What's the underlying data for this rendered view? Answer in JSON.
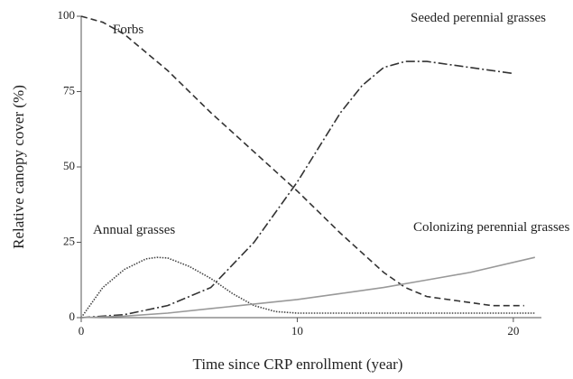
{
  "chart_data": {
    "type": "line",
    "x_label": "Time since CRP enrollment (year)",
    "y_label": "Relative canopy cover (%)",
    "xlim": [
      0,
      21.3
    ],
    "ylim": [
      0,
      100
    ],
    "xticks": [
      0,
      10,
      20
    ],
    "yticks": [
      0,
      25,
      50,
      75,
      100
    ],
    "series": [
      {
        "name": "Forbs",
        "color": "#333333",
        "dash": "7,4",
        "x": [
          0,
          1,
          2,
          4,
          6,
          8,
          10,
          12,
          14,
          15,
          16,
          18,
          19,
          20.5
        ],
        "values": [
          100,
          98,
          94,
          82,
          68,
          55,
          42,
          28,
          15,
          10,
          7,
          5,
          4,
          4
        ]
      },
      {
        "name": "Seeded perennial grasses",
        "color": "#333333",
        "dash": "10,3,2,3",
        "x": [
          0,
          2,
          4,
          6,
          8,
          10,
          12,
          13,
          14,
          15,
          16,
          18,
          20
        ],
        "values": [
          0,
          1,
          4,
          10,
          25,
          45,
          68,
          77,
          83,
          85,
          85,
          83,
          81
        ]
      },
      {
        "name": "Annual grasses",
        "color": "#444444",
        "dash": "1.5,1.5",
        "x": [
          0,
          1,
          2,
          3,
          3.5,
          4,
          5,
          6,
          7,
          8,
          9,
          10,
          21
        ],
        "values": [
          0,
          10,
          16,
          19.5,
          20,
          19.8,
          17,
          13,
          8,
          4,
          2,
          1.5,
          1.5
        ]
      },
      {
        "name": "Colonizing perennial grasses",
        "color": "#999999",
        "dash": "",
        "x": [
          0,
          2,
          4,
          6,
          8,
          10,
          12,
          14,
          16,
          18,
          21
        ],
        "values": [
          0,
          0.5,
          1.5,
          3,
          4.5,
          6,
          8,
          10,
          12.5,
          15,
          20
        ]
      }
    ]
  }
}
